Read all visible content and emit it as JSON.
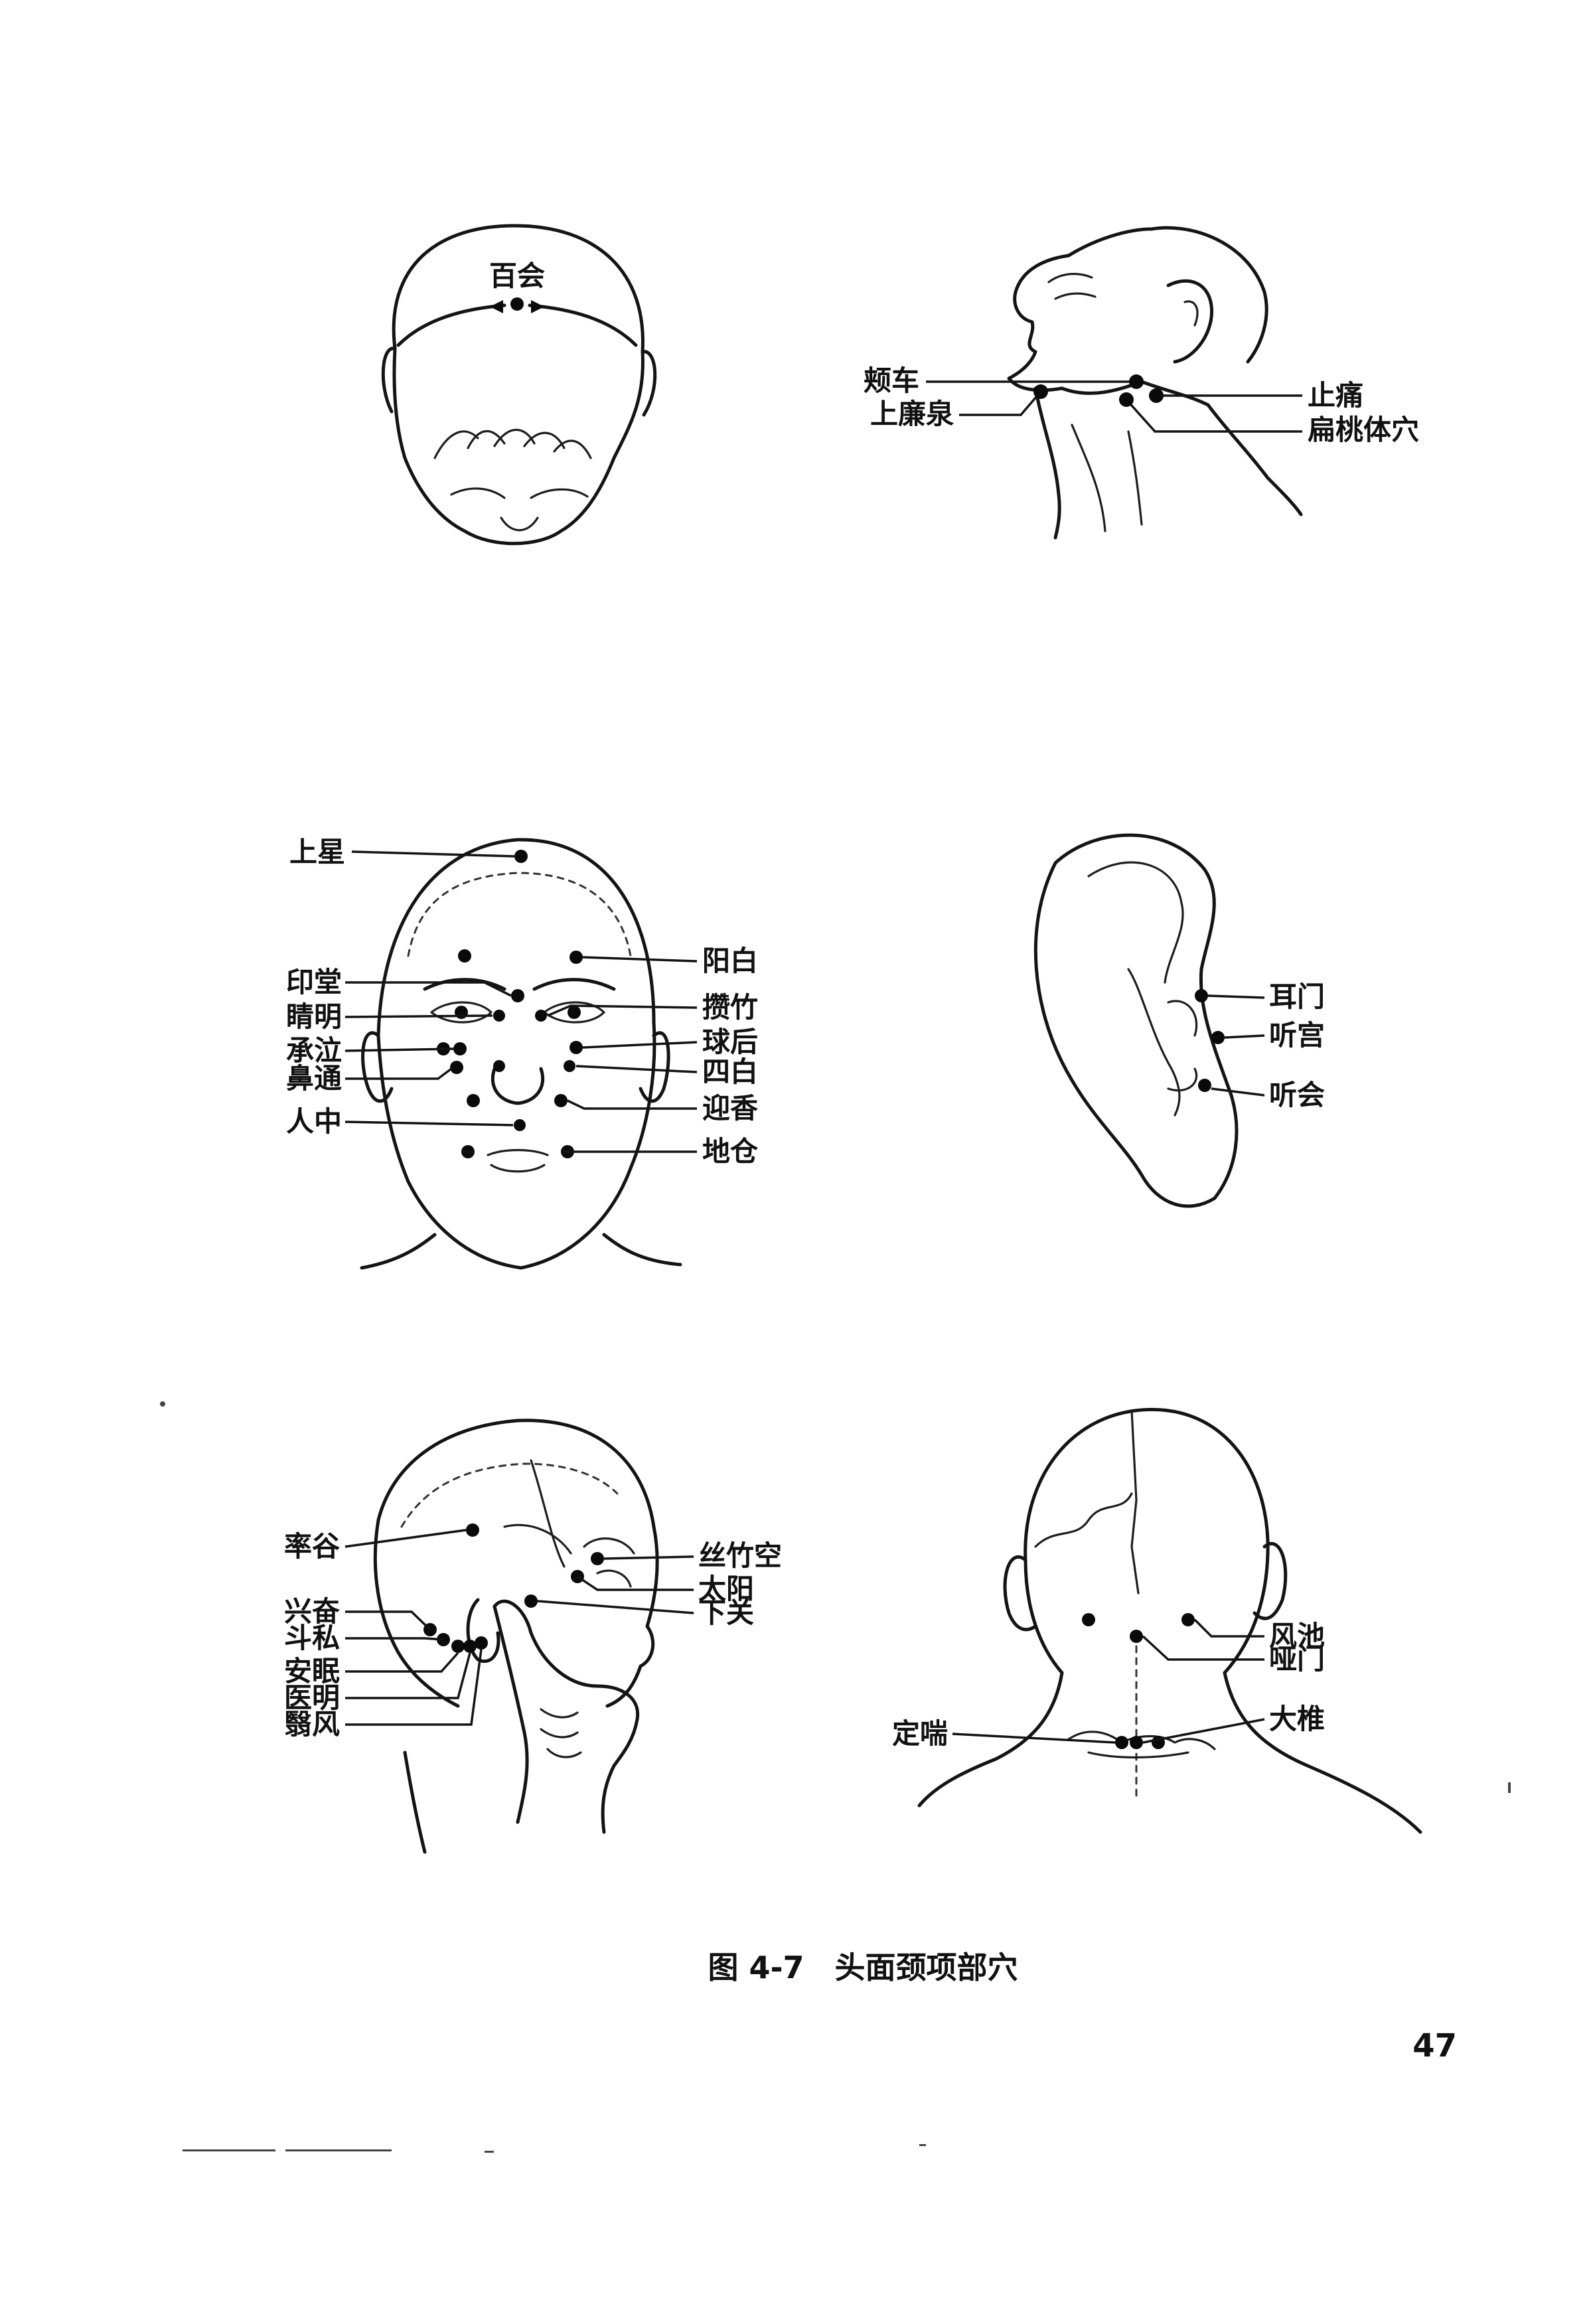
{
  "figure": {
    "caption": "图 4-7　头面颈项部穴",
    "page_number": "47"
  },
  "panels": {
    "crown": {
      "labels": {
        "baihui": "百会"
      }
    },
    "neck": {
      "labels": {
        "jiache": "颊车",
        "shanglianquan": "上廉泉",
        "zhitong": "止痛",
        "biantaotixue": "扁桃体穴"
      }
    },
    "face": {
      "labels": {
        "shangxing": "上星",
        "yintang": "印堂",
        "jingming": "睛明",
        "chengqi": "承泣",
        "bitong": "鼻通",
        "renzhong": "人中",
        "yangbai": "阳白",
        "zanzhu": "攒竹",
        "qiuhou": "球后",
        "sibai": "四白",
        "yingxiang": "迎香",
        "dicang": "地仓"
      }
    },
    "ear": {
      "labels": {
        "ermen": "耳门",
        "tinggong": "听宫",
        "tinghui": "听会"
      }
    },
    "side_head": {
      "labels": {
        "shuaigu": "率谷",
        "xingfen": "兴奋",
        "dousi": "斗私",
        "anmian": "安眠",
        "yiming": "医明",
        "yifeng": "翳风",
        "sizhukong": "丝竹空",
        "taiyang": "太阳",
        "xiaguan": "下关"
      }
    },
    "back_head": {
      "labels": {
        "fengchi": "风池",
        "yamen": "哑门",
        "dazhui": "大椎",
        "dingchuan": "定喘"
      }
    }
  }
}
